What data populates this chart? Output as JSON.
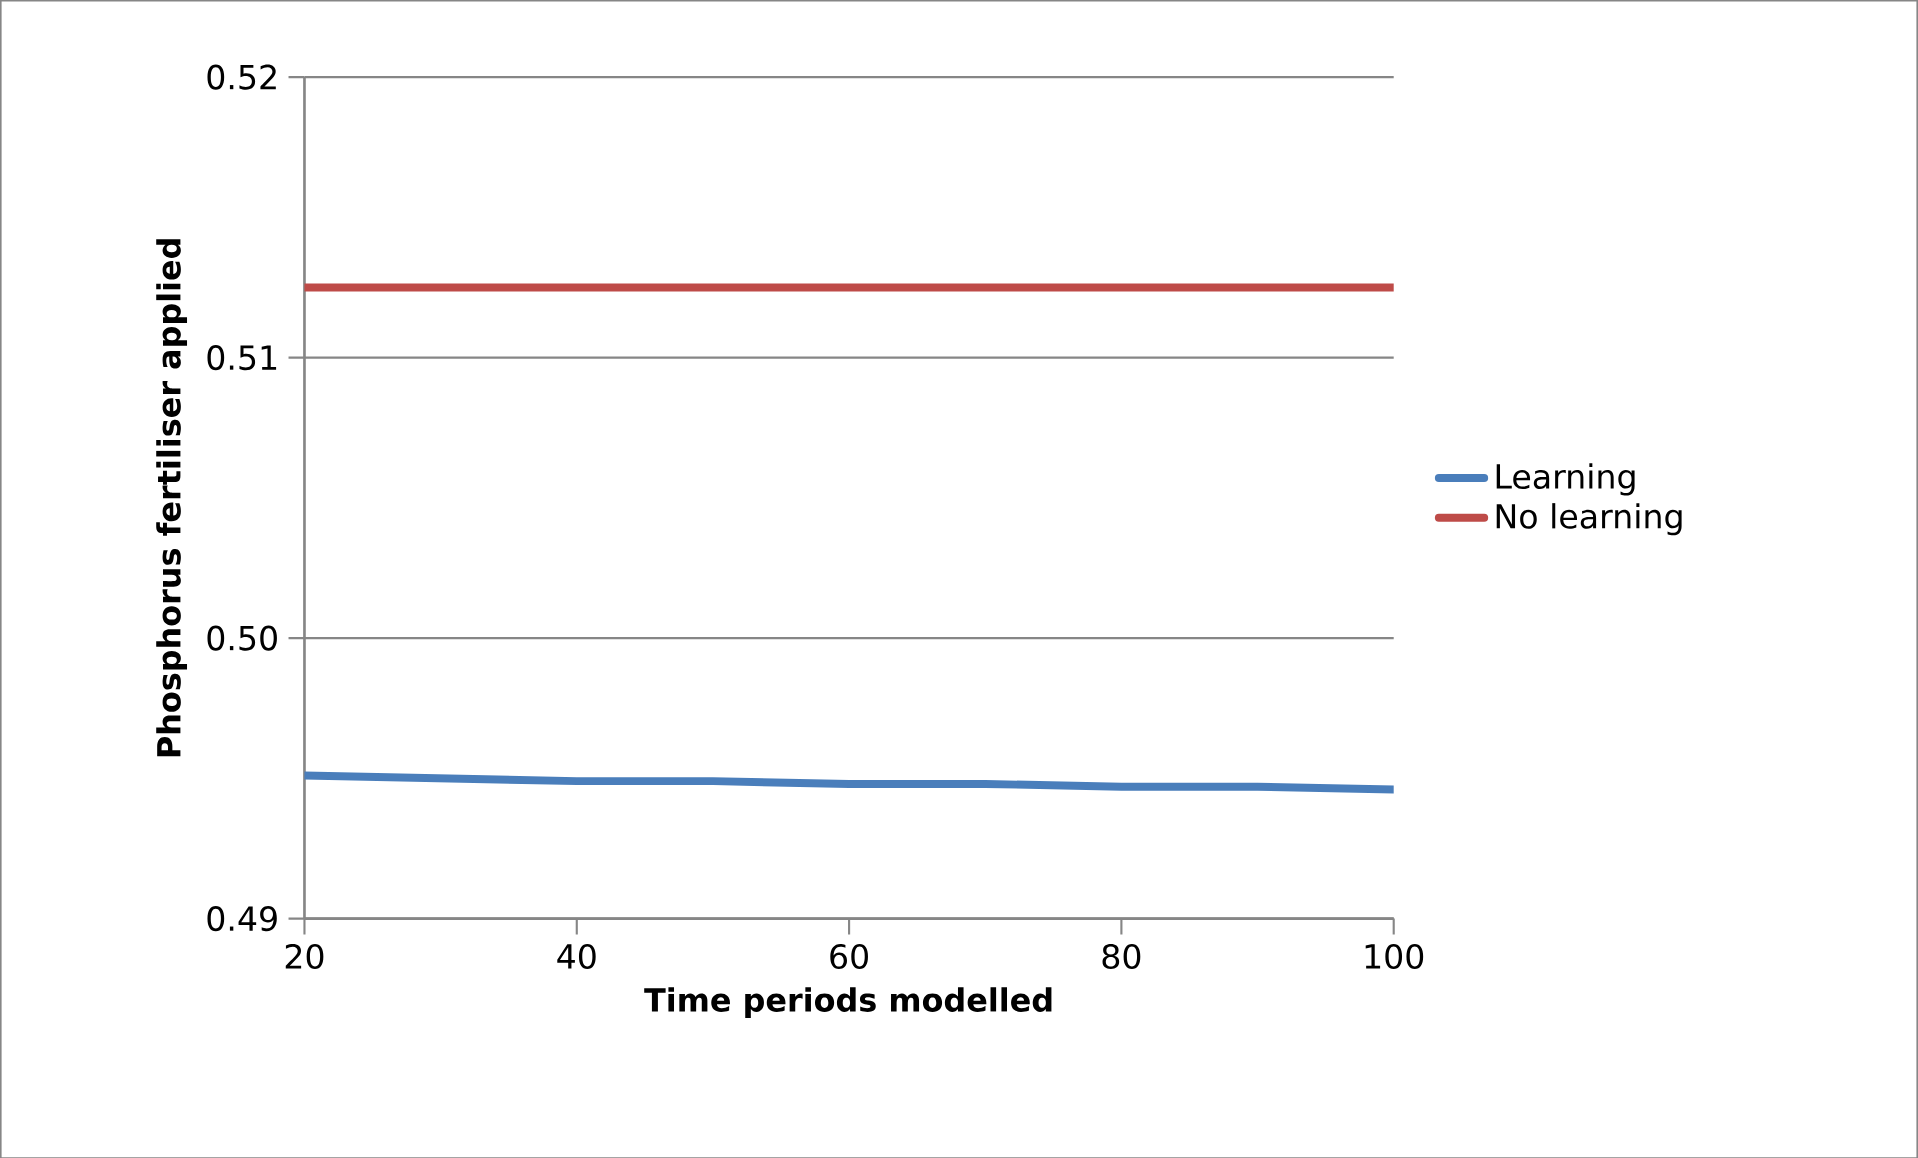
{
  "chart_data": {
    "type": "line",
    "xlabel": "Time periods modelled",
    "ylabel": "Phosphorus fertiliser applied",
    "x": [
      20,
      30,
      40,
      50,
      60,
      70,
      80,
      90,
      100
    ],
    "series": [
      {
        "name": "Learning",
        "color": "#4a7ebb",
        "values": [
          0.4951,
          0.495,
          0.4949,
          0.4949,
          0.4948,
          0.4948,
          0.4947,
          0.4947,
          0.4946
        ]
      },
      {
        "name": "No learning",
        "color": "#be4b48",
        "values": [
          0.5125,
          0.5125,
          0.5125,
          0.5125,
          0.5125,
          0.5125,
          0.5125,
          0.5125,
          0.5125
        ]
      }
    ],
    "xlim": [
      20,
      100
    ],
    "xticks": [
      20,
      40,
      60,
      80,
      100
    ],
    "ylim": [
      0.49,
      0.52
    ],
    "yticks": [
      {
        "value": 0.49,
        "label": "0.49"
      },
      {
        "value": 0.5,
        "label": "0.50"
      },
      {
        "value": 0.51,
        "label": "0.51"
      },
      {
        "value": 0.52,
        "label": "0.52"
      }
    ],
    "grid": "y",
    "legend": "right",
    "marker": "none",
    "line_style": "solid"
  }
}
